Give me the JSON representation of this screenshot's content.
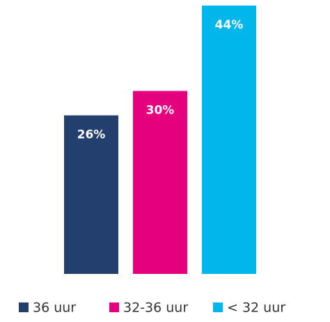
{
  "chart_data": {
    "type": "bar",
    "series": [
      {
        "name": "36 uur",
        "color": "#233f6d",
        "values": [
          26
        ],
        "value_labels": [
          "26%"
        ]
      },
      {
        "name": "32-36 uur",
        "color": "#e5007d",
        "values": [
          30
        ],
        "value_labels": [
          "30%"
        ]
      },
      {
        "name": "< 32 uur",
        "color": "#00b6ea",
        "values": [
          44
        ],
        "value_labels": [
          "44%"
        ]
      }
    ],
    "legend": "bottom"
  }
}
